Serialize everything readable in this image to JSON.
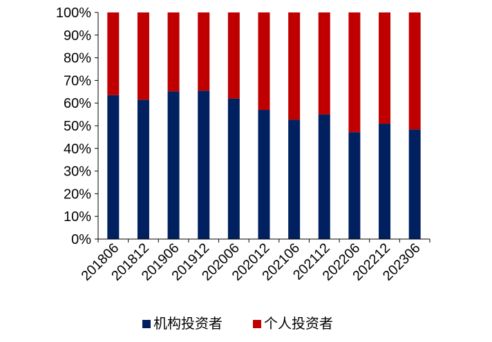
{
  "chart_data": {
    "type": "bar",
    "stacked": true,
    "normalized": true,
    "categories": [
      "201806",
      "201812",
      "201906",
      "201912",
      "202006",
      "202012",
      "202106",
      "202112",
      "202206",
      "202212",
      "202306"
    ],
    "series": [
      {
        "name": "机构投资者",
        "color": "#002060",
        "values": [
          63.5,
          61.5,
          65.2,
          65.5,
          62.0,
          57.0,
          52.7,
          55.0,
          47.2,
          50.9,
          48.4
        ]
      },
      {
        "name": "个人投资者",
        "color": "#C00000",
        "values": [
          36.5,
          38.5,
          34.8,
          34.5,
          38.0,
          43.0,
          47.3,
          45.0,
          52.8,
          49.1,
          51.6
        ]
      }
    ],
    "yticks": [
      "0%",
      "10%",
      "20%",
      "30%",
      "40%",
      "50%",
      "60%",
      "70%",
      "80%",
      "90%",
      "100%"
    ],
    "ylim": [
      0,
      100
    ],
    "grid": false,
    "legend_position": "bottom",
    "title": "",
    "xlabel": "",
    "ylabel": ""
  }
}
